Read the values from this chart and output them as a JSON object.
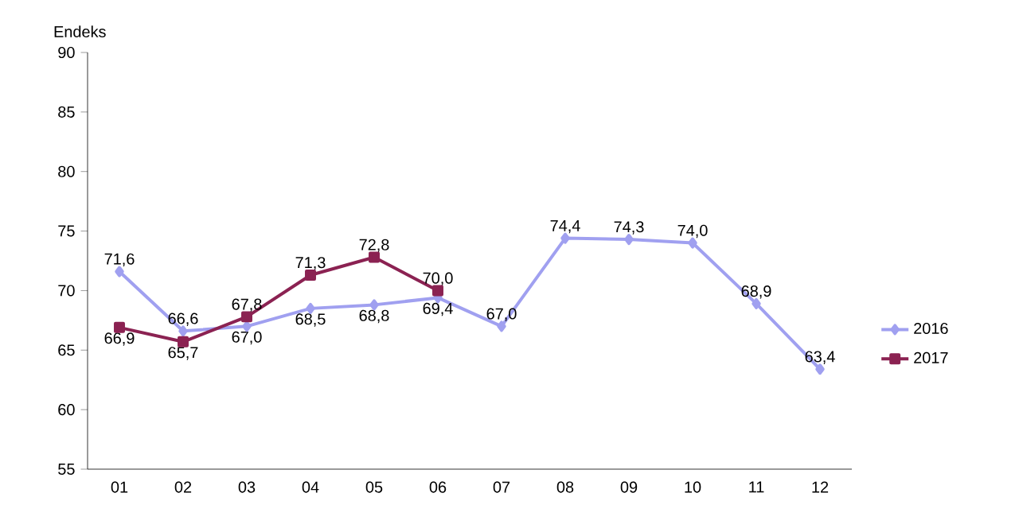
{
  "chart_data": {
    "type": "line",
    "ylabel": "Endeks",
    "categories": [
      "01",
      "02",
      "03",
      "04",
      "05",
      "06",
      "07",
      "08",
      "09",
      "10",
      "11",
      "12"
    ],
    "ylim": [
      55,
      90
    ],
    "yticks": [
      55,
      60,
      65,
      70,
      75,
      80,
      85,
      90
    ],
    "grid": false,
    "legend": "right",
    "line_style": "solid",
    "series": [
      {
        "name": "2016",
        "color": "#a0a0f0",
        "marker": "diamond",
        "values": [
          71.6,
          66.6,
          67.0,
          68.5,
          68.8,
          69.4,
          67.0,
          74.4,
          74.3,
          74.0,
          68.9,
          63.4
        ],
        "value_labels": [
          "71,6",
          "66,6",
          "67,0",
          "68,5",
          "68,8",
          "69,4",
          "67,0",
          "74,4",
          "74,3",
          "74,0",
          "68,9",
          "63,4"
        ]
      },
      {
        "name": "2017",
        "color": "#8b2252",
        "marker": "square",
        "values": [
          66.9,
          65.7,
          67.8,
          71.3,
          72.8,
          70.0,
          null,
          null,
          null,
          null,
          null,
          null
        ],
        "value_labels": [
          "66,9",
          "65,7",
          "67,8",
          "71,3",
          "72,8",
          "70,0",
          null,
          null,
          null,
          null,
          null,
          null
        ]
      }
    ]
  }
}
